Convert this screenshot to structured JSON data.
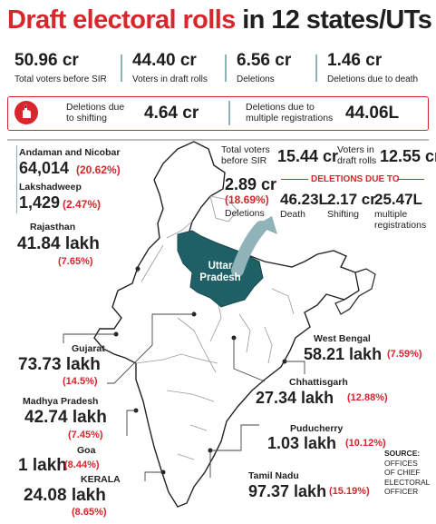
{
  "title": {
    "part1": "Draft electoral rolls",
    "part2": "in 12 states/UTs"
  },
  "top_stats": [
    {
      "value": "50.96 cr",
      "label": "Total voters before SIR"
    },
    {
      "value": "44.40 cr",
      "label": "Voters in draft rolls"
    },
    {
      "value": "6.56 cr",
      "label": "Deletions"
    },
    {
      "value": "1.46 cr",
      "label": "Deletions due to death"
    }
  ],
  "deletions_strip": {
    "shifting_label_1": "Deletions due",
    "shifting_label_2": "to shifting",
    "shifting_value": "4.64 cr",
    "multi_label_1": "Deletions due to",
    "multi_label_2": "multiple registrations",
    "multi_value": "44.06L"
  },
  "up_stats": {
    "total_label_1": "Total voters",
    "total_label_2": "before SIR",
    "total_value": "15.44 cr",
    "draft_label_1": "Voters in",
    "draft_label_2": "draft rolls",
    "draft_value": "12.55 cr",
    "deletions_value": "2.89 cr",
    "deletions_pct": "(18.69%)",
    "deletions_label": "Deletions",
    "header": "DELETIONS DUE TO",
    "death_value": "46.23L",
    "death_label": "Death",
    "shifting_value": "2.17 cr",
    "shifting_label": "Shifting",
    "multi_value": "25.47L",
    "multi_label_1": "multiple",
    "multi_label_2": "registrations"
  },
  "map_label": {
    "line1": "Uttar",
    "line2": "Pradesh"
  },
  "states": {
    "andaman": {
      "name": "Andaman and Nicobar",
      "value": "64,014",
      "pct": "(20.62%)"
    },
    "lakshadweep": {
      "name": "Lakshadweep",
      "value": "1,429",
      "pct": "(2.47%)"
    },
    "rajasthan": {
      "name": "Rajasthan",
      "value": "41.84 lakh",
      "pct": "(7.65%)"
    },
    "gujarat": {
      "name": "Gujarat",
      "value": "73.73 lakh",
      "pct": "(14.5%)"
    },
    "madhya_pradesh": {
      "name": "Madhya Pradesh",
      "value": "42.74 lakh",
      "pct": "(7.45%)"
    },
    "goa": {
      "name": "Goa",
      "value": "1 lakh",
      "pct": "(8.44%)"
    },
    "kerala": {
      "name": "KERALA",
      "value": "24.08 lakh",
      "pct": "(8.65%)"
    },
    "west_bengal": {
      "name": "West Bengal",
      "value": "58.21 lakh",
      "pct": "(7.59%)"
    },
    "chhattisgarh": {
      "name": "Chhattisgarh",
      "value": "27.34 lakh",
      "pct": "(12.88%)"
    },
    "puducherry": {
      "name": "Puducherry",
      "value": "1.03 lakh",
      "pct": "(10.12%)"
    },
    "tamil_nadu": {
      "name": "Tamil Nadu",
      "value": "97.37 lakh",
      "pct": "(15.19%)"
    }
  },
  "source": {
    "line1": "SOURCE:",
    "line2": "OFFICES",
    "line3": "OF CHIEF",
    "line4": "ELECTORAL",
    "line5": "OFFICER"
  },
  "colors": {
    "accent_red": "#d7262c",
    "up_teal": "#1f5f66",
    "divider": "#8fb3b8"
  }
}
